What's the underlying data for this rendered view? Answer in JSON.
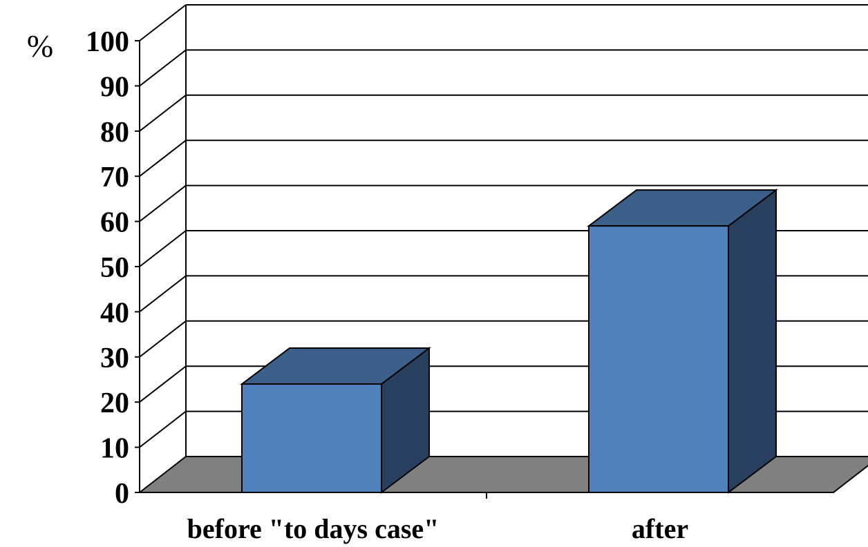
{
  "chart_data": {
    "type": "bar",
    "style": "3d",
    "categories": [
      "before \"to days case\"",
      "after"
    ],
    "values": [
      24,
      59
    ],
    "ylabel": "%",
    "xlabel": "",
    "title": "",
    "ylim": [
      0,
      100
    ],
    "yticks": [
      "0",
      "10",
      "20",
      "30",
      "40",
      "50",
      "60",
      "70",
      "80",
      "90",
      "100"
    ],
    "grid": true,
    "legend": "none",
    "colors": {
      "bar_front": "#4f81bd",
      "bar_top": "#3c5f8a",
      "bar_side": "#283f5e",
      "floor": "#808080",
      "grid": "#000000"
    }
  }
}
